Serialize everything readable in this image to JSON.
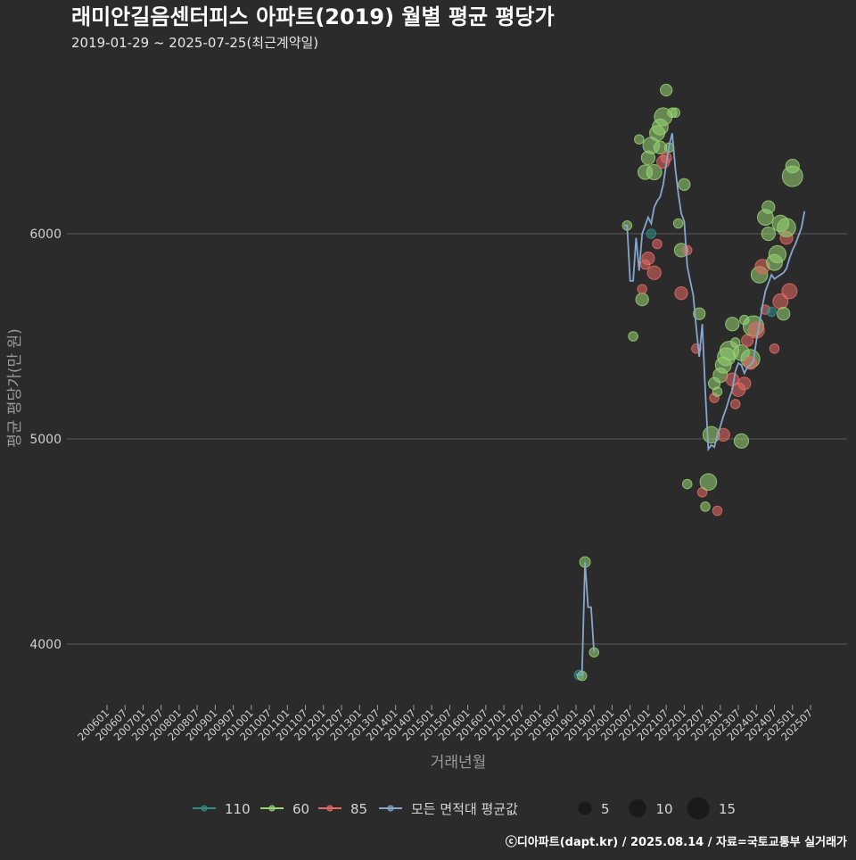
{
  "chart_data": {
    "type": "scatter",
    "title": "래미안길음센터피스 아파트(2019) 월별 평균 평당가",
    "subtitle": "2019-01-29 ~ 2025-07-25(최근계약일)",
    "xlabel": "거래년월",
    "ylabel": "평균 평당가(만 원)",
    "caption": "ⓒ디아파트(dapt.kr) / 2025.08.14 / 자료=국토교통부 실거래가",
    "x_range": [
      "2006-01",
      "2025-07"
    ],
    "ylim": [
      3700,
      6760
    ],
    "y_ticks": [
      4000,
      5000,
      6000
    ],
    "x_ticks": [
      "200601",
      "200607",
      "200701",
      "200707",
      "200801",
      "200807",
      "200901",
      "200907",
      "201001",
      "201007",
      "201101",
      "201107",
      "201201",
      "201207",
      "201301",
      "201307",
      "201401",
      "201407",
      "201501",
      "201507",
      "201601",
      "201607",
      "201701",
      "201707",
      "201801",
      "201807",
      "201901",
      "201907",
      "202001",
      "202007",
      "202101",
      "202107",
      "202201",
      "202207",
      "202301",
      "202307",
      "202401",
      "202407",
      "202501",
      "202507"
    ],
    "colors": {
      "background": "#2b2b2c",
      "grid": "#595959",
      "110": "#2f8f86",
      "60": "#98d473",
      "85": "#e66a64",
      "avg": "#87a6cd"
    },
    "legend": {
      "items": [
        {
          "key": "110",
          "label": "110"
        },
        {
          "key": "60",
          "label": "60"
        },
        {
          "key": "85",
          "label": "85"
        },
        {
          "key": "avg",
          "label": "모든 면적대 평균값"
        }
      ],
      "sizes": [
        5,
        10,
        15
      ]
    },
    "average_line": [
      [
        "2019-01",
        3850
      ],
      [
        "2019-02",
        3850
      ],
      [
        "2019-03",
        3850
      ],
      [
        "2019-04",
        4400
      ],
      [
        "2019-05",
        4180
      ],
      [
        "2019-06",
        4180
      ],
      [
        "2019-07",
        3960
      ],
      [
        "2020-05",
        6040
      ],
      [
        "2020-06",
        6040
      ],
      [
        "2020-07",
        5770
      ],
      [
        "2020-08",
        5770
      ],
      [
        "2020-09",
        5980
      ],
      [
        "2020-10",
        5820
      ],
      [
        "2020-11",
        6000
      ],
      [
        "2020-12",
        6040
      ],
      [
        "2021-01",
        6080
      ],
      [
        "2021-02",
        6050
      ],
      [
        "2021-03",
        6130
      ],
      [
        "2021-04",
        6160
      ],
      [
        "2021-05",
        6180
      ],
      [
        "2021-06",
        6240
      ],
      [
        "2021-07",
        6340
      ],
      [
        "2021-08",
        6430
      ],
      [
        "2021-09",
        6490
      ],
      [
        "2021-10",
        6320
      ],
      [
        "2021-11",
        6200
      ],
      [
        "2021-12",
        6100
      ],
      [
        "2022-01",
        6060
      ],
      [
        "2022-02",
        5840
      ],
      [
        "2022-03",
        5770
      ],
      [
        "2022-04",
        5700
      ],
      [
        "2022-05",
        5540
      ],
      [
        "2022-06",
        5400
      ],
      [
        "2022-07",
        5560
      ],
      [
        "2022-08",
        5230
      ],
      [
        "2022-09",
        4950
      ],
      [
        "2022-10",
        4970
      ],
      [
        "2022-11",
        4960
      ],
      [
        "2022-12",
        5020
      ],
      [
        "2023-01",
        5060
      ],
      [
        "2023-02",
        5110
      ],
      [
        "2023-03",
        5150
      ],
      [
        "2023-04",
        5200
      ],
      [
        "2023-05",
        5240
      ],
      [
        "2023-06",
        5330
      ],
      [
        "2023-07",
        5370
      ],
      [
        "2023-08",
        5360
      ],
      [
        "2023-09",
        5320
      ],
      [
        "2023-10",
        5350
      ],
      [
        "2023-11",
        5360
      ],
      [
        "2023-12",
        5380
      ],
      [
        "2024-01",
        5480
      ],
      [
        "2024-02",
        5560
      ],
      [
        "2024-03",
        5650
      ],
      [
        "2024-04",
        5720
      ],
      [
        "2024-05",
        5760
      ],
      [
        "2024-06",
        5800
      ],
      [
        "2024-07",
        5780
      ],
      [
        "2024-08",
        5790
      ],
      [
        "2024-09",
        5800
      ],
      [
        "2024-10",
        5810
      ],
      [
        "2024-11",
        5830
      ],
      [
        "2024-12",
        5880
      ],
      [
        "2025-01",
        5920
      ],
      [
        "2025-02",
        5950
      ],
      [
        "2025-03",
        5990
      ],
      [
        "2025-04",
        6030
      ],
      [
        "2025-05",
        6110
      ]
    ],
    "points": [
      {
        "x": "2019-02",
        "y": 3850,
        "group": "110",
        "size": 2
      },
      {
        "x": "2019-03",
        "y": 3845,
        "group": "60",
        "size": 2
      },
      {
        "x": "2019-04",
        "y": 4400,
        "group": "60",
        "size": 3
      },
      {
        "x": "2019-07",
        "y": 3960,
        "group": "60",
        "size": 2
      },
      {
        "x": "2020-06",
        "y": 6040,
        "group": "60",
        "size": 2
      },
      {
        "x": "2020-08",
        "y": 5500,
        "group": "60",
        "size": 2
      },
      {
        "x": "2020-10",
        "y": 6460,
        "group": "60",
        "size": 2
      },
      {
        "x": "2020-11",
        "y": 5680,
        "group": "60",
        "size": 5
      },
      {
        "x": "2020-11",
        "y": 5730,
        "group": "85",
        "size": 2
      },
      {
        "x": "2020-12",
        "y": 6300,
        "group": "60",
        "size": 7
      },
      {
        "x": "2020-12",
        "y": 5850,
        "group": "85",
        "size": 2
      },
      {
        "x": "2021-01",
        "y": 5880,
        "group": "85",
        "size": 5
      },
      {
        "x": "2021-01",
        "y": 6370,
        "group": "60",
        "size": 6
      },
      {
        "x": "2021-02",
        "y": 6430,
        "group": "60",
        "size": 10
      },
      {
        "x": "2021-02",
        "y": 6000,
        "group": "110",
        "size": 2
      },
      {
        "x": "2021-03",
        "y": 5810,
        "group": "85",
        "size": 6
      },
      {
        "x": "2021-03",
        "y": 6300,
        "group": "60",
        "size": 8
      },
      {
        "x": "2021-04",
        "y": 6490,
        "group": "60",
        "size": 8
      },
      {
        "x": "2021-04",
        "y": 5950,
        "group": "85",
        "size": 2
      },
      {
        "x": "2021-05",
        "y": 6420,
        "group": "60",
        "size": 5
      },
      {
        "x": "2021-05",
        "y": 6520,
        "group": "60",
        "size": 9
      },
      {
        "x": "2021-06",
        "y": 6350,
        "group": "85",
        "size": 5
      },
      {
        "x": "2021-06",
        "y": 6570,
        "group": "60",
        "size": 12
      },
      {
        "x": "2021-07",
        "y": 6700,
        "group": "60",
        "size": 4
      },
      {
        "x": "2021-07",
        "y": 6370,
        "group": "85",
        "size": 3
      },
      {
        "x": "2021-08",
        "y": 6420,
        "group": "60",
        "size": 2
      },
      {
        "x": "2021-09",
        "y": 6590,
        "group": "60",
        "size": 2
      },
      {
        "x": "2021-10",
        "y": 6590,
        "group": "60",
        "size": 2
      },
      {
        "x": "2021-11",
        "y": 6050,
        "group": "60",
        "size": 2
      },
      {
        "x": "2021-12",
        "y": 5920,
        "group": "60",
        "size": 6
      },
      {
        "x": "2021-12",
        "y": 5710,
        "group": "85",
        "size": 5
      },
      {
        "x": "2022-01",
        "y": 6240,
        "group": "60",
        "size": 4
      },
      {
        "x": "2022-02",
        "y": 5920,
        "group": "85",
        "size": 2
      },
      {
        "x": "2022-02",
        "y": 4780,
        "group": "60",
        "size": 2
      },
      {
        "x": "2022-05",
        "y": 5440,
        "group": "85",
        "size": 2
      },
      {
        "x": "2022-06",
        "y": 5610,
        "group": "60",
        "size": 4
      },
      {
        "x": "2022-07",
        "y": 4740,
        "group": "85",
        "size": 2
      },
      {
        "x": "2022-08",
        "y": 4670,
        "group": "60",
        "size": 2
      },
      {
        "x": "2022-09",
        "y": 4790,
        "group": "60",
        "size": 10
      },
      {
        "x": "2022-10",
        "y": 5020,
        "group": "60",
        "size": 10
      },
      {
        "x": "2022-11",
        "y": 5270,
        "group": "60",
        "size": 4
      },
      {
        "x": "2022-11",
        "y": 5200,
        "group": "85",
        "size": 2
      },
      {
        "x": "2022-12",
        "y": 5230,
        "group": "60",
        "size": 2
      },
      {
        "x": "2022-12",
        "y": 4650,
        "group": "85",
        "size": 2
      },
      {
        "x": "2023-01",
        "y": 5310,
        "group": "60",
        "size": 7
      },
      {
        "x": "2023-02",
        "y": 5020,
        "group": "85",
        "size": 5
      },
      {
        "x": "2023-02",
        "y": 5360,
        "group": "60",
        "size": 9
      },
      {
        "x": "2023-03",
        "y": 5400,
        "group": "60",
        "size": 12
      },
      {
        "x": "2023-04",
        "y": 5430,
        "group": "60",
        "size": 14
      },
      {
        "x": "2023-05",
        "y": 5290,
        "group": "85",
        "size": 5
      },
      {
        "x": "2023-05",
        "y": 5560,
        "group": "60",
        "size": 6
      },
      {
        "x": "2023-06",
        "y": 5170,
        "group": "85",
        "size": 2
      },
      {
        "x": "2023-06",
        "y": 5470,
        "group": "60",
        "size": 2
      },
      {
        "x": "2023-07",
        "y": 5240,
        "group": "85",
        "size": 6
      },
      {
        "x": "2023-08",
        "y": 5420,
        "group": "60",
        "size": 9
      },
      {
        "x": "2023-08",
        "y": 4990,
        "group": "60",
        "size": 7
      },
      {
        "x": "2023-09",
        "y": 5270,
        "group": "85",
        "size": 5
      },
      {
        "x": "2023-09",
        "y": 5580,
        "group": "60",
        "size": 2
      },
      {
        "x": "2023-10",
        "y": 5480,
        "group": "85",
        "size": 4
      },
      {
        "x": "2023-11",
        "y": 5390,
        "group": "60",
        "size": 14
      },
      {
        "x": "2023-11",
        "y": 5370,
        "group": "85",
        "size": 5
      },
      {
        "x": "2023-12",
        "y": 5550,
        "group": "60",
        "size": 17
      },
      {
        "x": "2024-01",
        "y": 5530,
        "group": "85",
        "size": 9
      },
      {
        "x": "2024-02",
        "y": 5800,
        "group": "60",
        "size": 10
      },
      {
        "x": "2024-03",
        "y": 5840,
        "group": "85",
        "size": 7
      },
      {
        "x": "2024-04",
        "y": 6080,
        "group": "60",
        "size": 9
      },
      {
        "x": "2024-04",
        "y": 5630,
        "group": "85",
        "size": 2
      },
      {
        "x": "2024-05",
        "y": 6000,
        "group": "60",
        "size": 6
      },
      {
        "x": "2024-05",
        "y": 6130,
        "group": "60",
        "size": 5
      },
      {
        "x": "2024-06",
        "y": 5620,
        "group": "110",
        "size": 2
      },
      {
        "x": "2024-07",
        "y": 5440,
        "group": "85",
        "size": 2
      },
      {
        "x": "2024-07",
        "y": 5860,
        "group": "60",
        "size": 9
      },
      {
        "x": "2024-08",
        "y": 5900,
        "group": "60",
        "size": 11
      },
      {
        "x": "2024-09",
        "y": 5670,
        "group": "85",
        "size": 8
      },
      {
        "x": "2024-09",
        "y": 6050,
        "group": "60",
        "size": 10
      },
      {
        "x": "2024-10",
        "y": 5610,
        "group": "60",
        "size": 5
      },
      {
        "x": "2024-11",
        "y": 5980,
        "group": "85",
        "size": 5
      },
      {
        "x": "2024-11",
        "y": 6030,
        "group": "60",
        "size": 13
      },
      {
        "x": "2024-12",
        "y": 5720,
        "group": "85",
        "size": 8
      },
      {
        "x": "2025-01",
        "y": 6280,
        "group": "60",
        "size": 17
      },
      {
        "x": "2025-01",
        "y": 6330,
        "group": "60",
        "size": 6
      }
    ]
  }
}
